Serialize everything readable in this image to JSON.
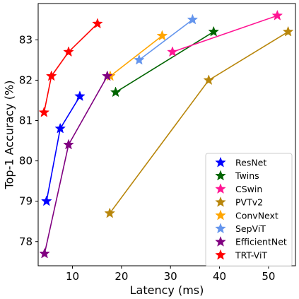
{
  "chart_data": {
    "type": "line",
    "xlabel": "Latency (ms)",
    "ylabel": "Top-1 Accuracy (%)",
    "xlim": [
      3,
      55.5
    ],
    "ylim": [
      77.4,
      83.9
    ],
    "xticks": [
      10,
      20,
      30,
      40,
      50
    ],
    "yticks": [
      78,
      79,
      80,
      81,
      82,
      83
    ],
    "legend_position": "lower-right",
    "marker": "star",
    "grid": false,
    "series": [
      {
        "name": "ResNet",
        "color": "#0000ff",
        "points": [
          [
            4.7,
            79.0
          ],
          [
            7.5,
            80.8
          ],
          [
            11.5,
            81.6
          ]
        ]
      },
      {
        "name": "Twins",
        "color": "#006400",
        "points": [
          [
            18.8,
            81.7
          ],
          [
            38.8,
            83.2
          ]
        ]
      },
      {
        "name": "CSwin",
        "color": "#ff1493",
        "points": [
          [
            30.4,
            82.7
          ],
          [
            51.8,
            83.6
          ]
        ]
      },
      {
        "name": "PVTv2",
        "color": "#b8860b",
        "points": [
          [
            17.6,
            78.7
          ],
          [
            37.8,
            82.0
          ],
          [
            54.0,
            83.2
          ]
        ]
      },
      {
        "name": "ConvNext",
        "color": "#ffa500",
        "points": [
          [
            17.7,
            82.1
          ],
          [
            28.3,
            83.1
          ]
        ]
      },
      {
        "name": "SepViT",
        "color": "#6495ed",
        "points": [
          [
            23.6,
            82.5
          ],
          [
            34.5,
            83.5
          ]
        ]
      },
      {
        "name": "EfficientNet",
        "color": "#800080",
        "points": [
          [
            4.3,
            77.7
          ],
          [
            9.2,
            80.4
          ],
          [
            17.1,
            82.1
          ]
        ]
      },
      {
        "name": "TRT-ViT",
        "color": "#ff0000",
        "points": [
          [
            4.2,
            81.2
          ],
          [
            5.7,
            82.1
          ],
          [
            9.2,
            82.7
          ],
          [
            15.1,
            83.4
          ]
        ]
      }
    ]
  }
}
